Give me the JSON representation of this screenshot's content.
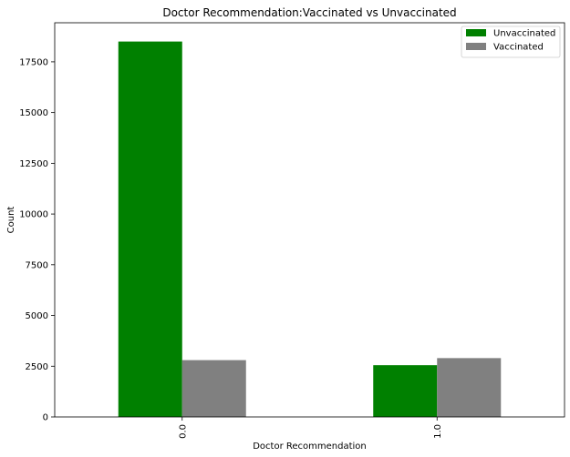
{
  "chart_data": {
    "type": "bar",
    "title": "Doctor Recommendation:Vaccinated vs Unvaccinated",
    "xlabel": "Doctor Recommendation",
    "ylabel": "Count",
    "categories": [
      "0.0",
      "1.0"
    ],
    "series": [
      {
        "name": "Unvaccinated",
        "color": "#008000",
        "values": [
          18500,
          2550
        ]
      },
      {
        "name": "Vaccinated",
        "color": "#808080",
        "values": [
          2800,
          2900
        ]
      }
    ],
    "ylim": [
      0,
      19425
    ],
    "yticks": [
      0,
      2500,
      5000,
      7500,
      10000,
      12500,
      15000,
      17500
    ],
    "legend": "top-right",
    "grid": false
  }
}
